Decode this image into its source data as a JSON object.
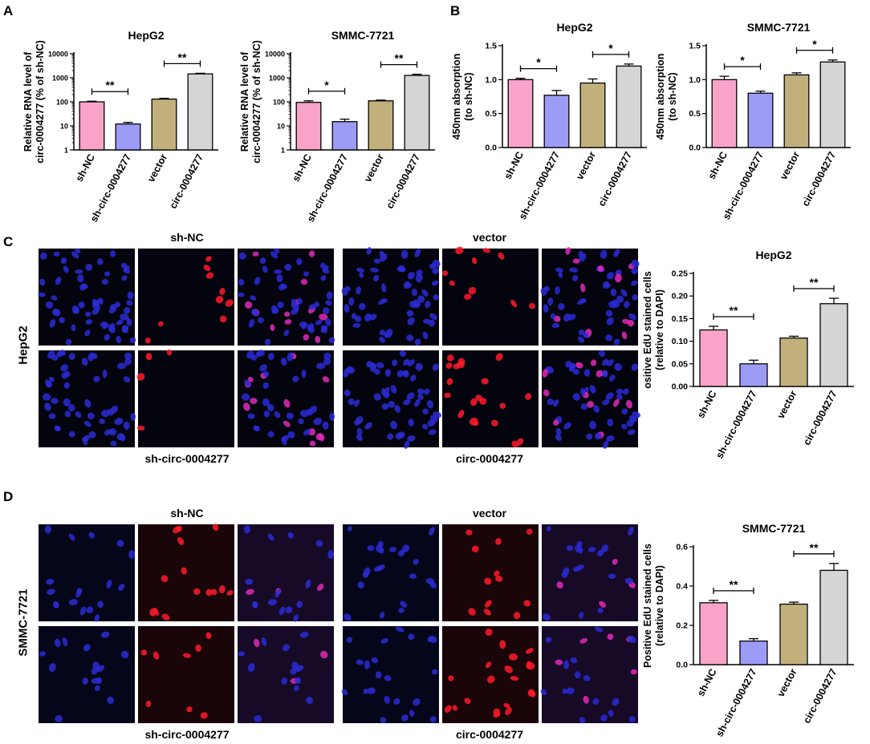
{
  "panels": {
    "A": "A",
    "B": "B",
    "C": "C",
    "D": "D"
  },
  "colors": {
    "sh_nc": "#f9a3c9",
    "sh_circ": "#9c9cf7",
    "vector": "#c2b07c",
    "circ": "#d5d5d5"
  },
  "microscopy": {
    "C": {
      "top_left": "sh-NC",
      "top_right": "vector",
      "bottom_left": "sh-circ-0004277",
      "bottom_right": "circ-0004277",
      "row_label": "HepG2"
    },
    "D": {
      "top_left": "sh-NC",
      "top_right": "vector",
      "bottom_left": "sh-circ-0004277",
      "bottom_right": "circ-0004277",
      "row_label": "SMMC-7721"
    }
  },
  "chart_data": [
    {
      "id": "A1",
      "type": "bar",
      "title": "HepG2",
      "yscale": "log",
      "ylabel": [
        "Relative RNA level of",
        "circ-0004277 (% of sh-NC)"
      ],
      "categories": [
        "sh-NC",
        "sh-circ-0004277",
        "vector",
        "circ-0004277"
      ],
      "values": [
        100,
        12,
        130,
        1450
      ],
      "errors": [
        6,
        2,
        10,
        90
      ],
      "ylim": [
        1,
        10000
      ],
      "ticks": [
        1,
        10,
        100,
        1000,
        10000
      ],
      "tick_labels": [
        "1",
        "10",
        "100",
        "1000",
        "10000"
      ],
      "significance": [
        {
          "from": 0,
          "to": 1,
          "label": "**"
        },
        {
          "from": 2,
          "to": 3,
          "label": "**"
        }
      ]
    },
    {
      "id": "A2",
      "type": "bar",
      "title": "SMMC-7721",
      "yscale": "log",
      "ylabel": [
        "Relative RNA level of",
        "circ-0004277 (% of sh-NC)"
      ],
      "categories": [
        "sh-NC",
        "sh-circ-0004277",
        "vector",
        "circ-0004277"
      ],
      "values": [
        95,
        15,
        110,
        1250
      ],
      "errors": [
        15,
        4,
        8,
        150
      ],
      "ylim": [
        1,
        10000
      ],
      "ticks": [
        1,
        10,
        100,
        1000,
        10000
      ],
      "tick_labels": [
        "1",
        "10",
        "100",
        "1000",
        "10000"
      ],
      "significance": [
        {
          "from": 0,
          "to": 1,
          "label": "*"
        },
        {
          "from": 2,
          "to": 3,
          "label": "**"
        }
      ]
    },
    {
      "id": "B1",
      "type": "bar",
      "title": "HepG2",
      "yscale": "linear",
      "ylabel": [
        "450nm absorption",
        "(to sh-NC)"
      ],
      "categories": [
        "sh-NC",
        "sh-circ-0004277",
        "vector",
        "circ-0004277"
      ],
      "values": [
        1.0,
        0.77,
        0.95,
        1.2
      ],
      "errors": [
        0.02,
        0.07,
        0.06,
        0.03
      ],
      "ylim": [
        0,
        1.5
      ],
      "ticks": [
        0,
        0.5,
        1.0,
        1.5
      ],
      "tick_labels": [
        "0.0",
        "0.5",
        "1.0",
        "1.5"
      ],
      "significance": [
        {
          "from": 0,
          "to": 1,
          "label": "*"
        },
        {
          "from": 2,
          "to": 3,
          "label": "*"
        }
      ]
    },
    {
      "id": "B2",
      "type": "bar",
      "title": "SMMC-7721",
      "yscale": "linear",
      "ylabel": [
        "450nm absorption",
        "(to sh-NC)"
      ],
      "categories": [
        "sh-NC",
        "sh-circ-0004277",
        "vector",
        "circ-0004277"
      ],
      "values": [
        1.0,
        0.8,
        1.07,
        1.26
      ],
      "errors": [
        0.05,
        0.03,
        0.03,
        0.03
      ],
      "ylim": [
        0,
        1.5
      ],
      "ticks": [
        0,
        0.5,
        1.0,
        1.5
      ],
      "tick_labels": [
        "0.0",
        "0.5",
        "1.0",
        "1.5"
      ],
      "significance": [
        {
          "from": 0,
          "to": 1,
          "label": "*"
        },
        {
          "from": 2,
          "to": 3,
          "label": "*"
        }
      ]
    },
    {
      "id": "C",
      "type": "bar",
      "title": "HepG2",
      "yscale": "linear",
      "ylabel": [
        "ositive EdU stained cells",
        "(relative to DAPI)"
      ],
      "categories": [
        "sh-NC",
        "sh-circ-0004277",
        "vector",
        "circ-0004277"
      ],
      "values": [
        0.125,
        0.05,
        0.107,
        0.183
      ],
      "errors": [
        0.008,
        0.008,
        0.004,
        0.012
      ],
      "ylim": [
        0,
        0.25
      ],
      "ticks": [
        0,
        0.05,
        0.1,
        0.15,
        0.2,
        0.25
      ],
      "tick_labels": [
        "0.00",
        "0.05",
        "0.10",
        "0.15",
        "0.20",
        "0.25"
      ],
      "significance": [
        {
          "from": 0,
          "to": 1,
          "label": "**"
        },
        {
          "from": 2,
          "to": 3,
          "label": "**"
        }
      ]
    },
    {
      "id": "D",
      "type": "bar",
      "title": "SMMC-7721",
      "yscale": "linear",
      "ylabel": [
        "Positive EdU stained cells",
        "(relative to DAPI)"
      ],
      "categories": [
        "sh-NC",
        "sh-circ-0004277",
        "vector",
        "circ-0004277"
      ],
      "values": [
        0.315,
        0.12,
        0.308,
        0.48
      ],
      "errors": [
        0.012,
        0.012,
        0.01,
        0.035
      ],
      "ylim": [
        0,
        0.6
      ],
      "ticks": [
        0,
        0.2,
        0.4,
        0.6
      ],
      "tick_labels": [
        "0.0",
        "0.2",
        "0.4",
        "0.6"
      ],
      "significance": [
        {
          "from": 0,
          "to": 1,
          "label": "**"
        },
        {
          "from": 2,
          "to": 3,
          "label": "**"
        }
      ]
    }
  ]
}
